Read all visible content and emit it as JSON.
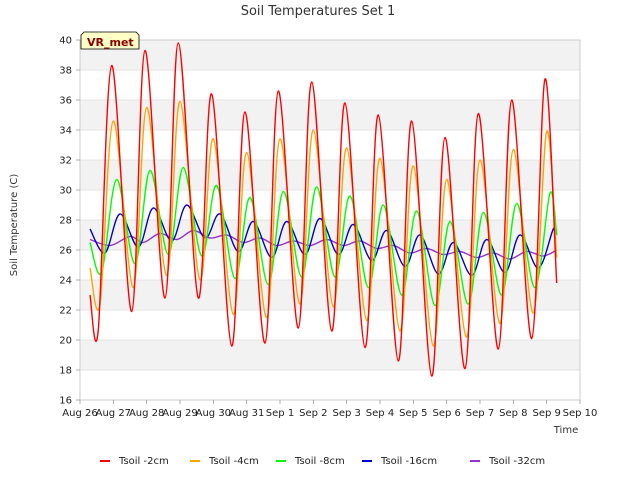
{
  "chart_data": {
    "type": "line",
    "title": "Soil Temperatures Set 1",
    "xlabel": "Time",
    "ylabel": "Soil Temperature (C)",
    "badge": "VR_met",
    "ylim": [
      16,
      40
    ],
    "yticks": [
      16,
      18,
      20,
      22,
      24,
      26,
      28,
      30,
      32,
      34,
      36,
      38,
      40
    ],
    "xlim": [
      0,
      15
    ],
    "xticks": [
      {
        "x": 0,
        "label": "Aug 26"
      },
      {
        "x": 1,
        "label": "Aug 27"
      },
      {
        "x": 2,
        "label": "Aug 28"
      },
      {
        "x": 3,
        "label": "Aug 29"
      },
      {
        "x": 4,
        "label": "Aug 30"
      },
      {
        "x": 5,
        "label": "Aug 31"
      },
      {
        "x": 6,
        "label": "Sep 1"
      },
      {
        "x": 7,
        "label": "Sep 2"
      },
      {
        "x": 8,
        "label": "Sep 3"
      },
      {
        "x": 9,
        "label": "Sep 4"
      },
      {
        "x": 10,
        "label": "Sep 5"
      },
      {
        "x": 11,
        "label": "Sep 6"
      },
      {
        "x": 12,
        "label": "Sep 7"
      },
      {
        "x": 13,
        "label": "Sep 8"
      },
      {
        "x": 14,
        "label": "Sep 9"
      },
      {
        "x": 15,
        "label": "Sep 10"
      }
    ],
    "grid": true,
    "legend_position": "bottom",
    "series": [
      {
        "name": "Tsoil -2cm",
        "color": "#ff0000",
        "points": [
          [
            0.3,
            23.0
          ],
          [
            0.55,
            20.7
          ],
          [
            0.95,
            38.3
          ],
          [
            1.55,
            21.9
          ],
          [
            1.95,
            39.3
          ],
          [
            2.55,
            22.8
          ],
          [
            2.95,
            39.8
          ],
          [
            3.55,
            22.8
          ],
          [
            3.95,
            36.4
          ],
          [
            4.55,
            19.6
          ],
          [
            4.95,
            35.2
          ],
          [
            5.55,
            19.8
          ],
          [
            5.95,
            36.6
          ],
          [
            6.55,
            20.8
          ],
          [
            6.95,
            37.2
          ],
          [
            7.55,
            20.6
          ],
          [
            7.95,
            35.8
          ],
          [
            8.55,
            19.5
          ],
          [
            8.95,
            35.0
          ],
          [
            9.55,
            18.6
          ],
          [
            9.95,
            34.6
          ],
          [
            10.55,
            17.6
          ],
          [
            10.95,
            33.5
          ],
          [
            11.55,
            18.1
          ],
          [
            11.95,
            35.1
          ],
          [
            12.55,
            19.4
          ],
          [
            12.95,
            36.0
          ],
          [
            13.55,
            20.1
          ],
          [
            13.95,
            37.4
          ],
          [
            14.3,
            23.8
          ]
        ]
      },
      {
        "name": "Tsoil -4cm",
        "color": "#ffa500",
        "points": [
          [
            0.3,
            24.8
          ],
          [
            0.6,
            22.4
          ],
          [
            1.0,
            34.6
          ],
          [
            1.6,
            23.5
          ],
          [
            2.0,
            35.5
          ],
          [
            2.6,
            24.3
          ],
          [
            3.0,
            35.9
          ],
          [
            3.6,
            24.0
          ],
          [
            4.0,
            33.4
          ],
          [
            4.6,
            21.7
          ],
          [
            5.0,
            32.5
          ],
          [
            5.6,
            21.5
          ],
          [
            6.0,
            33.4
          ],
          [
            6.6,
            22.4
          ],
          [
            7.0,
            34.0
          ],
          [
            7.6,
            22.2
          ],
          [
            8.0,
            32.8
          ],
          [
            8.6,
            21.3
          ],
          [
            9.0,
            32.1
          ],
          [
            9.6,
            20.6
          ],
          [
            10.0,
            31.6
          ],
          [
            10.6,
            19.6
          ],
          [
            11.0,
            30.7
          ],
          [
            11.6,
            20.2
          ],
          [
            12.0,
            32.0
          ],
          [
            12.6,
            21.1
          ],
          [
            13.0,
            32.7
          ],
          [
            13.6,
            21.8
          ],
          [
            14.0,
            33.9
          ],
          [
            14.3,
            25.5
          ]
        ]
      },
      {
        "name": "Tsoil -8cm",
        "color": "#00ff00",
        "points": [
          [
            0.3,
            26.5
          ],
          [
            0.65,
            24.5
          ],
          [
            1.1,
            30.7
          ],
          [
            1.65,
            25.1
          ],
          [
            2.1,
            31.3
          ],
          [
            2.65,
            25.7
          ],
          [
            3.1,
            31.5
          ],
          [
            3.65,
            25.6
          ],
          [
            4.1,
            30.3
          ],
          [
            4.65,
            24.1
          ],
          [
            5.1,
            29.5
          ],
          [
            5.65,
            23.7
          ],
          [
            6.1,
            29.9
          ],
          [
            6.65,
            24.2
          ],
          [
            7.1,
            30.2
          ],
          [
            7.65,
            24.2
          ],
          [
            8.1,
            29.6
          ],
          [
            8.65,
            23.5
          ],
          [
            9.1,
            29.0
          ],
          [
            9.65,
            23.0
          ],
          [
            10.1,
            28.6
          ],
          [
            10.65,
            22.3
          ],
          [
            11.1,
            27.9
          ],
          [
            11.65,
            22.4
          ],
          [
            12.1,
            28.5
          ],
          [
            12.65,
            23.0
          ],
          [
            13.1,
            29.1
          ],
          [
            13.65,
            23.5
          ],
          [
            14.1,
            29.8
          ],
          [
            14.3,
            27.0
          ]
        ]
      },
      {
        "name": "Tsoil -16cm",
        "color": "#0000cd",
        "points": [
          [
            0.3,
            27.4
          ],
          [
            0.75,
            25.8
          ],
          [
            1.2,
            28.4
          ],
          [
            1.75,
            26.2
          ],
          [
            2.2,
            28.8
          ],
          [
            2.75,
            26.6
          ],
          [
            3.2,
            29.0
          ],
          [
            3.75,
            26.8
          ],
          [
            4.2,
            28.4
          ],
          [
            4.75,
            25.9
          ],
          [
            5.2,
            27.9
          ],
          [
            5.75,
            25.5
          ],
          [
            6.2,
            27.9
          ],
          [
            6.75,
            25.7
          ],
          [
            7.2,
            28.1
          ],
          [
            7.75,
            25.7
          ],
          [
            8.2,
            27.7
          ],
          [
            8.75,
            25.3
          ],
          [
            9.2,
            27.3
          ],
          [
            9.75,
            24.9
          ],
          [
            10.2,
            27.0
          ],
          [
            10.75,
            24.4
          ],
          [
            11.2,
            26.5
          ],
          [
            11.75,
            24.3
          ],
          [
            12.2,
            26.7
          ],
          [
            12.75,
            24.5
          ],
          [
            13.2,
            27.0
          ],
          [
            13.75,
            24.8
          ],
          [
            14.2,
            27.4
          ],
          [
            14.3,
            27.0
          ]
        ]
      },
      {
        "name": "Tsoil -32cm",
        "color": "#9932cc",
        "points": [
          [
            0.3,
            26.7
          ],
          [
            0.9,
            26.3
          ],
          [
            1.5,
            26.9
          ],
          [
            1.9,
            26.5
          ],
          [
            2.4,
            27.1
          ],
          [
            2.9,
            26.7
          ],
          [
            3.4,
            27.3
          ],
          [
            3.9,
            26.8
          ],
          [
            4.4,
            27.0
          ],
          [
            4.9,
            26.5
          ],
          [
            5.4,
            26.8
          ],
          [
            5.9,
            26.3
          ],
          [
            6.4,
            26.6
          ],
          [
            6.9,
            26.3
          ],
          [
            7.4,
            26.7
          ],
          [
            7.9,
            26.3
          ],
          [
            8.4,
            26.6
          ],
          [
            8.9,
            26.1
          ],
          [
            9.4,
            26.3
          ],
          [
            9.9,
            25.8
          ],
          [
            10.4,
            26.1
          ],
          [
            10.9,
            25.7
          ],
          [
            11.4,
            25.9
          ],
          [
            11.9,
            25.5
          ],
          [
            12.4,
            25.8
          ],
          [
            12.9,
            25.4
          ],
          [
            13.4,
            25.9
          ],
          [
            13.9,
            25.6
          ],
          [
            14.3,
            26.0
          ]
        ]
      }
    ]
  }
}
